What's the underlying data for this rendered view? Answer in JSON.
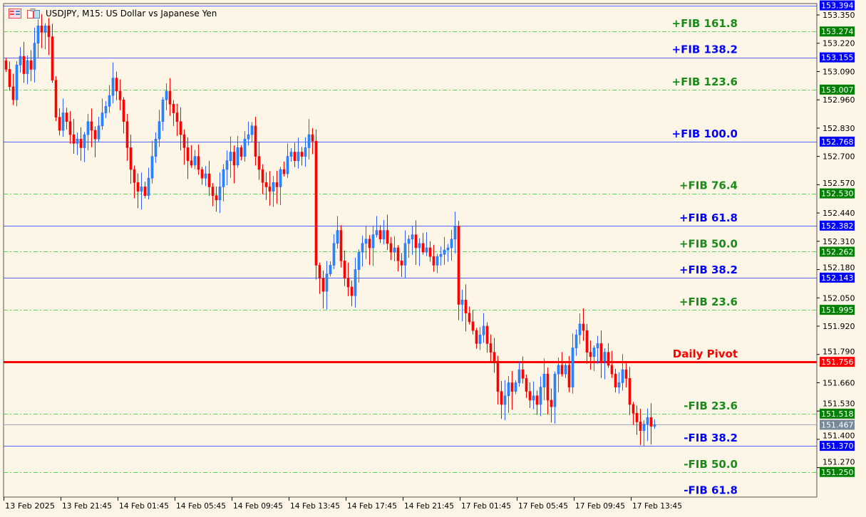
{
  "window": {
    "title": "USDJPY, M15:  US Dollar vs Japanese Yen"
  },
  "colors": {
    "background": "#fdf5e6",
    "bull": "#1e90ff",
    "bear": "#ff0000",
    "fib_plus": "#008000",
    "fib_blue": "#0000ff",
    "pivot": "#ff0000",
    "current": "#778899"
  },
  "icons": [
    "one-click-trading-icon",
    "chart-window-icon"
  ],
  "chart_data": {
    "type": "candlestick",
    "symbol": "USDJPY",
    "timeframe": "M15",
    "ylim": [
      151.18,
      153.4
    ],
    "y_ticks": [
      "153.350",
      "153.220",
      "153.090",
      "152.960",
      "152.830",
      "152.700",
      "152.570",
      "152.440",
      "152.310",
      "152.180",
      "152.050",
      "151.920",
      "151.790",
      "151.660",
      "151.530",
      "151.400",
      "151.270"
    ],
    "x_ticks": [
      "13 Feb 2025",
      "13 Feb 21:45",
      "14 Feb 01:45",
      "14 Feb 05:45",
      "14 Feb 09:45",
      "14 Feb 13:45",
      "14 Feb 17:45",
      "14 Feb 21:45",
      "17 Feb 01:45",
      "17 Feb 05:45",
      "17 Feb 09:45",
      "17 Feb 13:45"
    ],
    "closes": [
      153.1,
      153.02,
      152.96,
      153.12,
      153.16,
      153.08,
      153.14,
      153.1,
      153.22,
      153.3,
      153.27,
      153.3,
      153.25,
      153.05,
      152.88,
      152.82,
      152.9,
      152.86,
      152.8,
      152.76,
      152.78,
      152.74,
      152.8,
      152.86,
      152.82,
      152.78,
      152.84,
      152.9,
      152.93,
      152.98,
      153.06,
      153.0,
      152.96,
      152.86,
      152.74,
      152.64,
      152.58,
      152.54,
      152.56,
      152.52,
      152.6,
      152.7,
      152.78,
      152.86,
      152.96,
      153.0,
      152.94,
      152.9,
      152.86,
      152.8,
      152.74,
      152.68,
      152.66,
      152.7,
      152.64,
      152.6,
      152.62,
      152.56,
      152.52,
      152.5,
      152.56,
      152.64,
      152.68,
      152.72,
      152.66,
      152.74,
      152.7,
      152.78,
      152.8,
      152.84,
      152.7,
      152.64,
      152.58,
      152.56,
      152.54,
      152.58,
      152.56,
      152.64,
      152.62,
      152.7,
      152.72,
      152.68,
      152.72,
      152.7,
      152.74,
      152.8,
      152.77,
      152.2,
      152.14,
      152.08,
      152.16,
      152.2,
      152.3,
      152.36,
      152.22,
      152.14,
      152.1,
      152.06,
      152.18,
      152.26,
      152.3,
      152.32,
      152.28,
      152.34,
      152.36,
      152.32,
      152.36,
      152.3,
      152.26,
      152.28,
      152.22,
      152.2,
      152.3,
      152.32,
      152.34,
      152.28,
      152.3,
      152.26,
      152.28,
      152.24,
      152.2,
      152.24,
      152.25,
      152.27,
      152.28,
      152.32,
      152.38,
      152.02,
      152.04,
      151.98,
      151.94,
      151.9,
      151.84,
      151.88,
      151.92,
      151.84,
      151.8,
      151.76,
      151.62,
      151.56,
      151.6,
      151.66,
      151.62,
      151.66,
      151.72,
      151.68,
      151.62,
      151.58,
      151.6,
      151.56,
      151.64,
      151.7,
      151.58,
      151.55,
      151.7,
      151.74,
      151.7,
      151.74,
      151.64,
      151.82,
      151.88,
      151.93,
      151.9,
      151.8,
      151.78,
      151.82,
      151.84,
      151.76,
      151.8,
      151.74,
      151.7,
      151.64,
      151.66,
      151.72,
      151.68,
      151.56,
      151.52,
      151.48,
      151.44,
      151.47,
      151.5,
      151.46,
      151.467
    ],
    "levels": [
      {
        "label": "",
        "price": 153.394,
        "price_label": "153.394",
        "color": "#0000ff",
        "style": "solid"
      },
      {
        "label": "+FIB 161.8",
        "price": 153.274,
        "price_label": "153.274",
        "color": "#008000",
        "style": "dashdot"
      },
      {
        "label": "+FIB 138.2",
        "price": 153.155,
        "price_label": "153.155",
        "color": "#0000ff",
        "style": "solid"
      },
      {
        "label": "+FIB 123.6",
        "price": 153.007,
        "price_label": "153.007",
        "color": "#008000",
        "style": "dashdot"
      },
      {
        "label": "+FIB 100.0",
        "price": 152.768,
        "price_label": "152.768",
        "color": "#0000ff",
        "style": "solid"
      },
      {
        "label": "+FIB 76.4",
        "price": 152.53,
        "price_label": "152.530",
        "color": "#008000",
        "style": "dashdot"
      },
      {
        "label": "+FIB 61.8",
        "price": 152.382,
        "price_label": "152.382",
        "color": "#0000ff",
        "style": "solid"
      },
      {
        "label": "+FIB 50.0",
        "price": 152.262,
        "price_label": "152.262",
        "color": "#008000",
        "style": "dashdot"
      },
      {
        "label": "+FIB 38.2",
        "price": 152.143,
        "price_label": "152.143",
        "color": "#0000ff",
        "style": "solid"
      },
      {
        "label": "+FIB 23.6",
        "price": 151.995,
        "price_label": "151.995",
        "color": "#008000",
        "style": "dashdot"
      },
      {
        "label": "Daily Pivot",
        "price": 151.756,
        "price_label": "151.756",
        "color": "#ff0000",
        "style": "thick"
      },
      {
        "label": "-FIB 23.6",
        "price": 151.518,
        "price_label": "151.518",
        "color": "#008000",
        "style": "dashdot"
      },
      {
        "label": "",
        "price": 151.467,
        "price_label": "151.467",
        "color": "#778899",
        "style": "current"
      },
      {
        "label": "-FIB 38.2",
        "price": 151.37,
        "price_label": "151.370",
        "color": "#0000ff",
        "style": "solid"
      },
      {
        "label": "-FIB 50.0",
        "price": 151.25,
        "price_label": "151.250",
        "color": "#008000",
        "style": "dashdot"
      },
      {
        "label": "-FIB 61.8",
        "price": 151.13,
        "price_label": "",
        "color": "#0000ff",
        "style": "solid"
      }
    ]
  }
}
